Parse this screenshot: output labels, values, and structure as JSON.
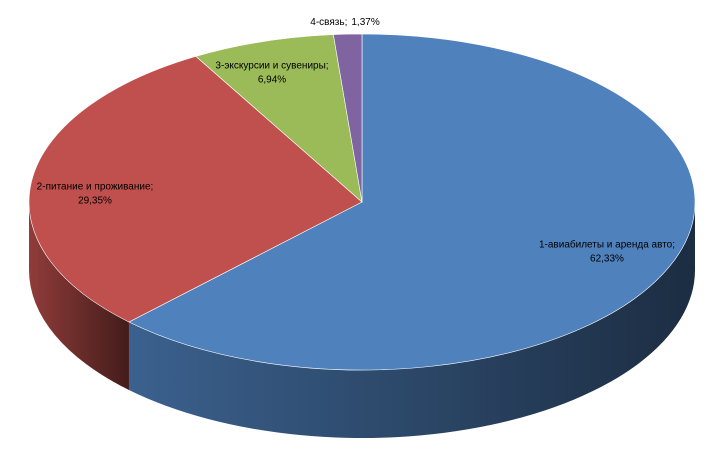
{
  "chart_data": {
    "type": "pie3d",
    "categories": [
      "1-авиабилеты и аренда авто;",
      "2-питание и проживание;",
      "3-экскурсии и сувениры;",
      "4-связь;"
    ],
    "values": [
      62.33,
      29.35,
      6.94,
      1.37
    ],
    "value_labels": [
      "62,33%",
      "29,35%",
      "6,94%",
      "1,37%"
    ],
    "colors": [
      "#4f81bd",
      "#c0504d",
      "#9bbb59",
      "#8064a2"
    ]
  }
}
